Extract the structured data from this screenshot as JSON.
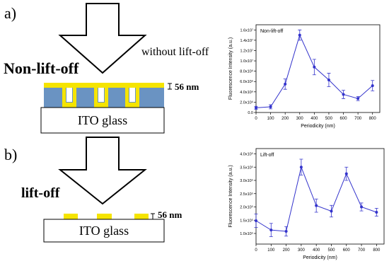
{
  "diagram": {
    "panel_a": "a)",
    "arrow_a_label": "without lift-off",
    "title_a": "Non-lift-off",
    "thickness_a": "56 nm",
    "substrate_a": "ITO glass",
    "panel_b": "b)",
    "title_b": "lift-off",
    "thickness_b": "56 nm",
    "substrate_b": "ITO glass"
  },
  "chart_data": [
    {
      "type": "line",
      "title": "Non-lift-off",
      "x_label": "Periodicity (nm)",
      "y_label": "Fluorescence Intensity (a.u.)",
      "x": [
        0,
        100,
        200,
        300,
        400,
        500,
        600,
        700,
        800
      ],
      "series": [
        {
          "color": "#3333cc",
          "values": [
            900000,
            1100000,
            5500000,
            15000000,
            8800000,
            6300000,
            3500000,
            2700000,
            5200000
          ],
          "errors": [
            300000,
            400000,
            1000000,
            1000000,
            1500000,
            1300000,
            800000,
            400000,
            1000000
          ]
        }
      ],
      "xlim": [
        0,
        850
      ],
      "xticks": [
        0,
        100,
        200,
        300,
        400,
        500,
        600,
        700,
        800
      ],
      "ylim": [
        0,
        17000000
      ],
      "yticks": [
        {
          "value": 0,
          "label": "0.0"
        },
        {
          "value": 2000000,
          "label": "2.0x10⁶"
        },
        {
          "value": 4000000,
          "label": "4.0x10⁶"
        },
        {
          "value": 6000000,
          "label": "6.0x10⁶"
        },
        {
          "value": 8000000,
          "label": "8.0x10⁶"
        },
        {
          "value": 10000000,
          "label": "1.0x10⁷"
        },
        {
          "value": 12000000,
          "label": "1.2x10⁷"
        },
        {
          "value": 14000000,
          "label": "1.4x10⁷"
        },
        {
          "value": 16000000,
          "label": "1.6x10⁷"
        }
      ]
    },
    {
      "type": "line",
      "title": "Lift-off",
      "x_label": "Periodicity (nm)",
      "y_label": "Fluorescence Intensity (a.u.)",
      "x": [
        0,
        100,
        200,
        300,
        400,
        500,
        600,
        700,
        800
      ],
      "series": [
        {
          "color": "#3333cc",
          "values": [
            148000,
            113000,
            108000,
            350000,
            205000,
            184000,
            325000,
            200000,
            180000
          ],
          "errors": [
            25000,
            25000,
            18000,
            30000,
            25000,
            22000,
            25000,
            15000,
            15000
          ]
        }
      ],
      "xlim": [
        0,
        850
      ],
      "xticks": [
        0,
        100,
        200,
        300,
        400,
        500,
        600,
        700,
        800
      ],
      "ylim": [
        60000,
        420000
      ],
      "yticks": [
        {
          "value": 100000,
          "label": "1.0x10⁵"
        },
        {
          "value": 150000,
          "label": "1.5x10⁵"
        },
        {
          "value": 200000,
          "label": "2.0x10⁵"
        },
        {
          "value": 250000,
          "label": "2.5x10⁵"
        },
        {
          "value": 300000,
          "label": "3.0x10⁵"
        },
        {
          "value": 350000,
          "label": "3.5x10⁵"
        },
        {
          "value": 400000,
          "label": "4.0x10⁵"
        }
      ]
    }
  ]
}
